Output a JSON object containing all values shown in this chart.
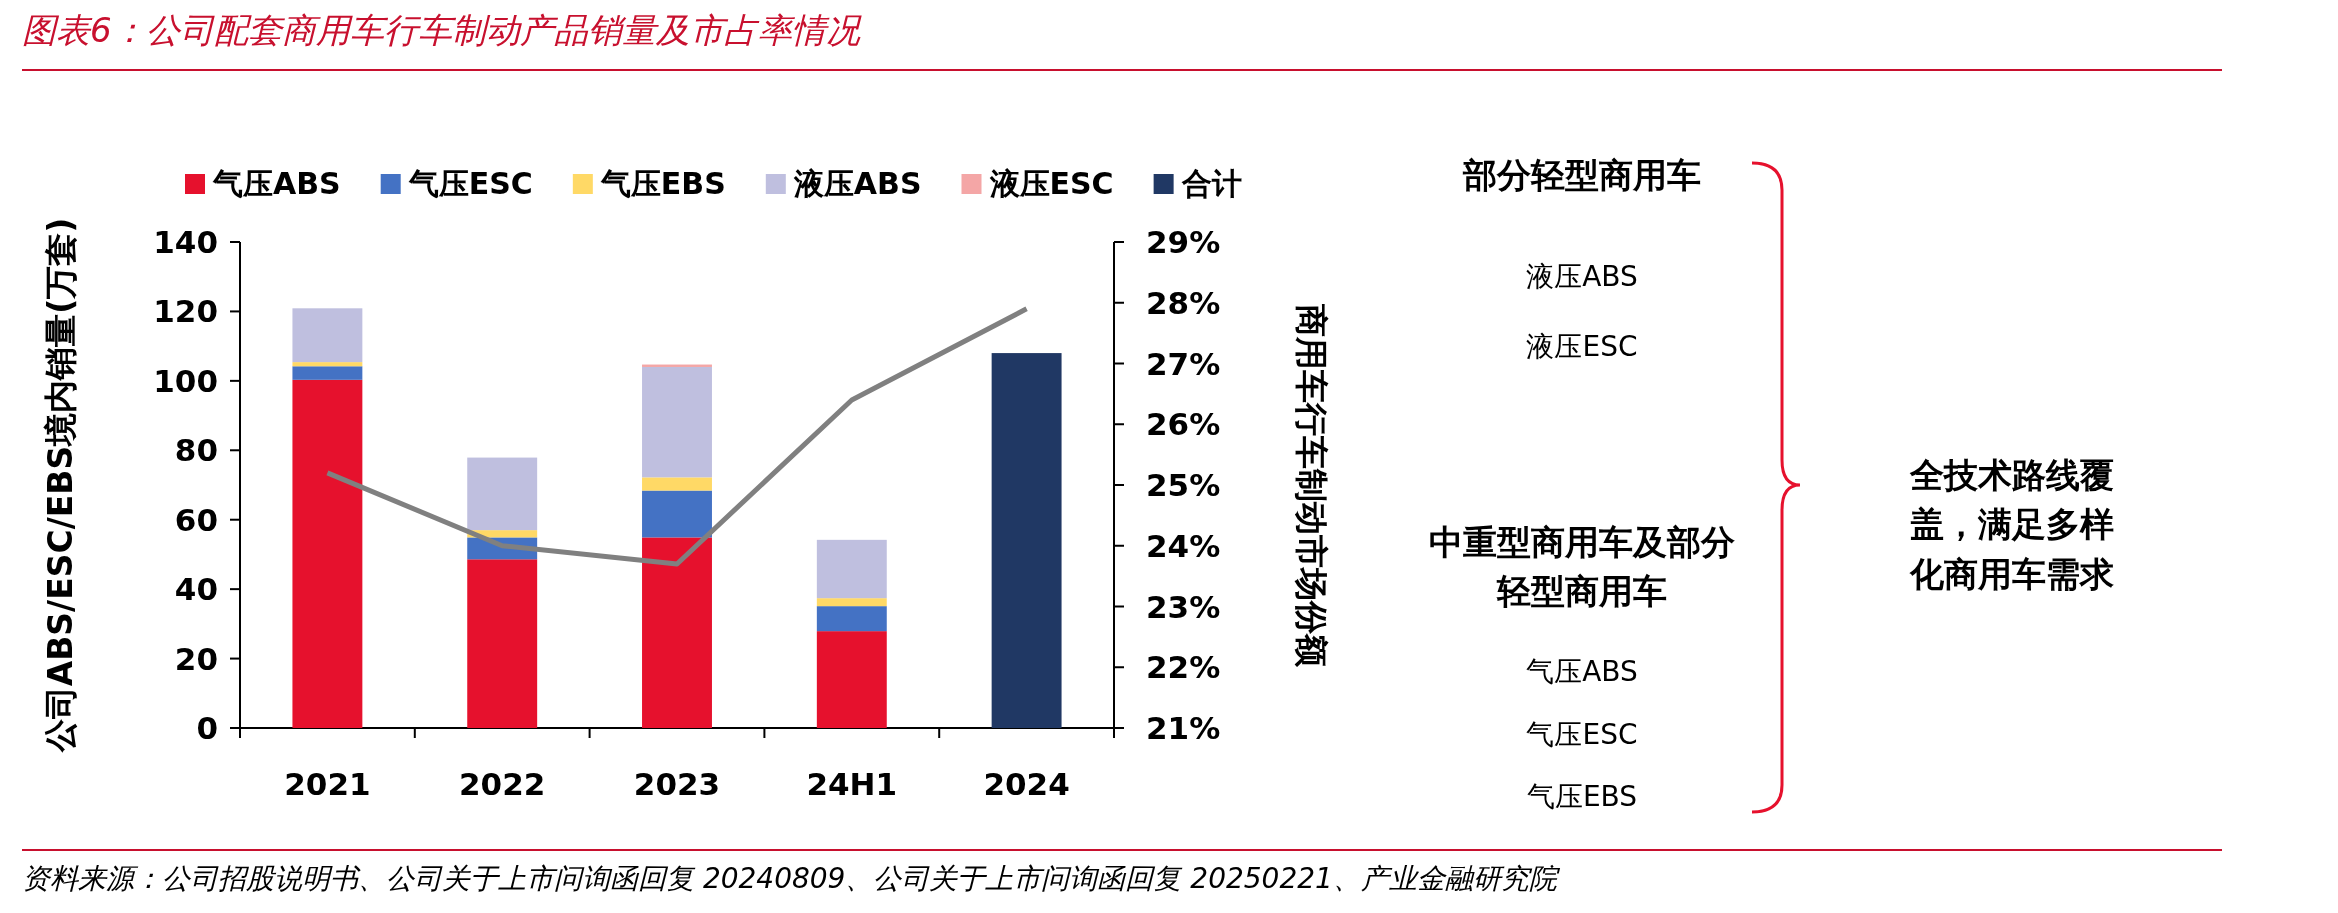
{
  "chart_data": [
    {
      "type": "bar",
      "title": "图表6：公司配套商用车行车制动产品销量及市占率情况",
      "categories": [
        "2021",
        "2022",
        "2023",
        "24H1",
        "2024"
      ],
      "stacked": true,
      "legend": "top",
      "ylabel": "公司ABS/ESC/EBS境内销量(万套)",
      "y2label": "商用车行车制动市场份额",
      "ylim": [
        0,
        140
      ],
      "yticks": [
        0,
        20,
        40,
        60,
        80,
        100,
        120,
        140
      ],
      "y2lim": [
        21,
        29
      ],
      "y2ticks": [
        {
          "value": 21,
          "label": "21%"
        },
        {
          "value": 22,
          "label": "22%"
        },
        {
          "value": 23,
          "label": "23%"
        },
        {
          "value": 24,
          "label": "24%"
        },
        {
          "value": 25,
          "label": "25%"
        },
        {
          "value": 26,
          "label": "26%"
        },
        {
          "value": 27,
          "label": "27%"
        },
        {
          "value": 28,
          "label": "28%"
        },
        {
          "value": 29,
          "label": "29%"
        }
      ],
      "series": [
        {
          "name": "气压ABS",
          "color": "#e6112d",
          "values": [
            100.3,
            48.6,
            54.9,
            27.9,
            null
          ]
        },
        {
          "name": "气压ESC",
          "color": "#4472c4",
          "values": [
            3.9,
            6.3,
            13.5,
            7.2,
            null
          ]
        },
        {
          "name": "气压EBS",
          "color": "#ffd966",
          "values": [
            1.2,
            2.1,
            3.8,
            2.3,
            null
          ]
        },
        {
          "name": "液压ABS",
          "color": "#bfbfdf",
          "values": [
            15.5,
            20.9,
            31.8,
            16.8,
            null
          ]
        },
        {
          "name": "液压ESC",
          "color": "#f4a6a6",
          "values": [
            null,
            null,
            0.7,
            null,
            null
          ]
        },
        {
          "name": "合计",
          "color": "#203864",
          "values": [
            null,
            null,
            null,
            null,
            108.0
          ]
        },
        {
          "type": "line",
          "axis": "y2",
          "color": "#808080",
          "values": [
            25.2,
            24.0,
            23.7,
            26.4,
            27.9
          ]
        }
      ],
      "annotations": [
        "资料来源：公司招股说明书、公司关于上市问询函回复 20240809、公司关于上市问询函回复 20250221、产业金融研究院"
      ]
    },
    {
      "type": "other",
      "annotations": [
        "部分轻型商用车",
        "液压ABS",
        "液压ESC",
        "中重型商用车及部分轻型商用车",
        "气压ABS",
        "气压ESC",
        "气压EBS",
        "全技术路线覆盖，满足多样化商用车需求"
      ]
    }
  ]
}
